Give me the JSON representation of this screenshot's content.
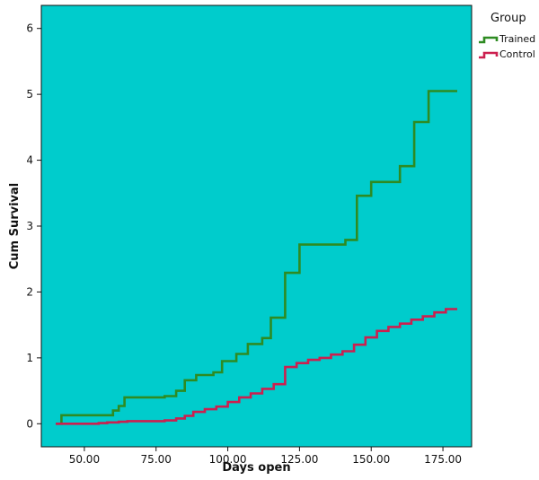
{
  "chart_data": {
    "type": "line",
    "xlabel": "Days open",
    "ylabel": "Cum Survival",
    "xlim": [
      35,
      185
    ],
    "ylim": [
      -0.35,
      6.35
    ],
    "xticks": [
      50,
      75,
      100,
      125,
      150,
      175
    ],
    "xtick_labels": [
      "50.00",
      "75.00",
      "100.00",
      "125.00",
      "150.00",
      "175.00"
    ],
    "yticks": [
      0,
      1,
      2,
      3,
      4,
      5,
      6
    ],
    "ytick_labels": [
      "0",
      "1",
      "2",
      "3",
      "4",
      "5",
      "6"
    ],
    "grid": false,
    "legend_placement": "top-right outside",
    "legend_title": "Group",
    "plot_background": "#00CCCC",
    "series": [
      {
        "name": "Trained",
        "color": "#2E8B22",
        "step": true,
        "x": [
          40,
          42,
          57,
          60,
          62,
          64,
          78,
          82,
          85,
          89,
          95,
          98,
          103,
          107,
          112,
          115,
          120,
          125,
          130,
          138,
          141,
          145,
          150,
          155,
          160,
          165,
          170,
          180
        ],
        "y": [
          0,
          0.13,
          0.13,
          0.2,
          0.27,
          0.4,
          0.42,
          0.5,
          0.66,
          0.74,
          0.78,
          0.95,
          1.06,
          1.21,
          1.3,
          1.61,
          2.29,
          2.72,
          2.72,
          2.72,
          2.79,
          3.46,
          3.67,
          3.67,
          3.91,
          4.58,
          5.05,
          5.05
        ]
      },
      {
        "name": "Control",
        "color": "#CC1F4F",
        "step": true,
        "x": [
          40,
          50,
          55,
          58,
          62,
          65,
          70,
          78,
          82,
          85,
          88,
          92,
          96,
          100,
          104,
          108,
          112,
          116,
          120,
          124,
          128,
          132,
          136,
          140,
          144,
          148,
          152,
          156,
          160,
          164,
          168,
          172,
          176,
          180
        ],
        "y": [
          0,
          0,
          0.01,
          0.02,
          0.03,
          0.04,
          0.04,
          0.05,
          0.08,
          0.12,
          0.18,
          0.22,
          0.26,
          0.33,
          0.4,
          0.46,
          0.53,
          0.6,
          0.86,
          0.92,
          0.97,
          1.0,
          1.05,
          1.1,
          1.2,
          1.31,
          1.41,
          1.47,
          1.52,
          1.58,
          1.63,
          1.69,
          1.74,
          1.74
        ]
      }
    ]
  }
}
